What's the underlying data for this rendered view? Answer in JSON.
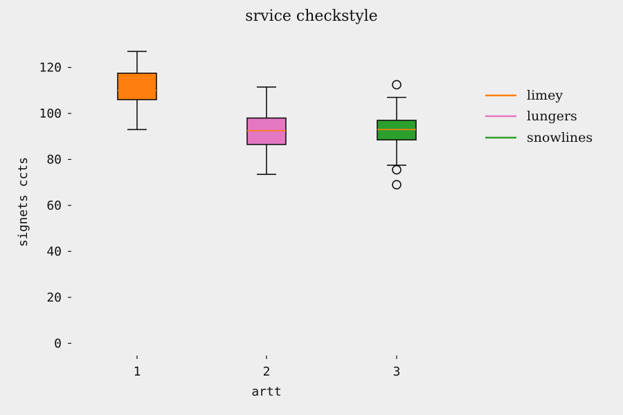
{
  "chart_data": {
    "type": "box",
    "title": "srvice checkstyle",
    "xlabel": "artt",
    "ylabel": "signets ccts",
    "categories": [
      "1",
      "2",
      "3"
    ],
    "ylim": [
      -5,
      134
    ],
    "yticks": [
      0,
      20,
      40,
      60,
      80,
      100,
      120
    ],
    "grid": false,
    "legend_position": "right",
    "series": [
      {
        "name": "limey",
        "color": "#ff7f0e",
        "median_color": "#ff7f0e",
        "whisker_low": 93,
        "q1": 106,
        "median": 110,
        "q3": 117.5,
        "whisker_high": 127,
        "outliers": []
      },
      {
        "name": "lungers",
        "color": "#e377c2",
        "median_color": "#ff7f0e",
        "whisker_low": 73.5,
        "q1": 86.5,
        "median": 92.5,
        "q3": 98,
        "whisker_high": 111.5,
        "outliers": []
      },
      {
        "name": "snowlines",
        "color": "#2ca02c",
        "median_color": "#ff7f0e",
        "whisker_low": 77.5,
        "q1": 88.5,
        "median": 93,
        "q3": 97,
        "whisker_high": 107,
        "outliers": [
          112.5,
          75.5,
          69
        ]
      }
    ]
  }
}
